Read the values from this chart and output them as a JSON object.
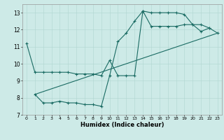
{
  "xlabel": "Humidex (Indice chaleur)",
  "xlim": [
    -0.5,
    23.5
  ],
  "ylim": [
    7.0,
    13.5
  ],
  "yticks": [
    7,
    8,
    9,
    10,
    11,
    12,
    13
  ],
  "xticks": [
    0,
    1,
    2,
    3,
    4,
    5,
    6,
    7,
    8,
    9,
    10,
    11,
    12,
    13,
    14,
    15,
    16,
    17,
    18,
    19,
    20,
    21,
    22,
    23
  ],
  "bg_color": "#cdeae7",
  "line_color": "#1a6b63",
  "grid_major_color": "#b0d5d0",
  "grid_minor_color": "#c8e5e2",
  "series1_x": [
    0,
    1,
    2,
    3,
    4,
    5,
    6,
    7,
    8,
    9,
    10,
    11,
    12,
    13,
    14,
    15,
    16,
    17,
    18,
    19,
    20,
    21,
    22
  ],
  "series1_y": [
    11.2,
    9.5,
    9.5,
    9.5,
    9.5,
    9.5,
    9.4,
    9.4,
    9.4,
    9.3,
    10.2,
    9.3,
    9.3,
    9.3,
    13.1,
    13.0,
    13.0,
    13.0,
    13.0,
    12.9,
    12.3,
    12.3,
    12.1
  ],
  "series2_x": [
    1,
    2,
    3,
    4,
    5,
    6,
    7,
    8,
    9,
    10,
    11,
    12,
    13,
    14,
    15,
    16,
    17,
    18,
    19,
    20,
    21,
    22,
    23
  ],
  "series2_y": [
    8.2,
    7.7,
    7.7,
    7.8,
    7.7,
    7.7,
    7.6,
    7.6,
    7.5,
    9.3,
    11.3,
    11.8,
    12.5,
    13.1,
    12.2,
    12.2,
    12.2,
    12.2,
    12.3,
    12.3,
    11.9,
    12.1,
    11.8
  ],
  "series3_x": [
    1,
    23
  ],
  "series3_y": [
    8.2,
    11.8
  ]
}
